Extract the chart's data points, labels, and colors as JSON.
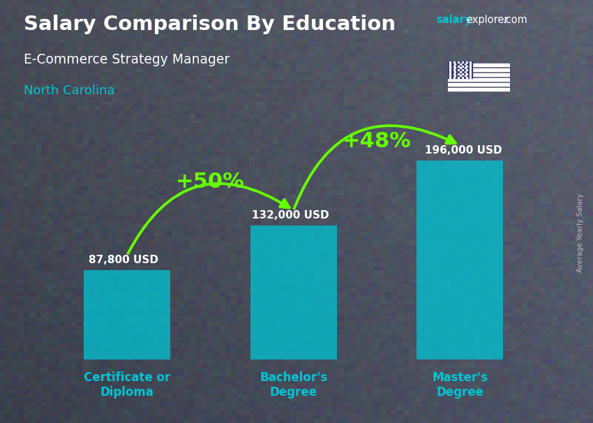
{
  "title": "Salary Comparison By Education",
  "subtitle": "E-Commerce Strategy Manager",
  "location": "North Carolina",
  "ylabel": "Average Yearly Salary",
  "categories": [
    "Certificate or\nDiploma",
    "Bachelor's\nDegree",
    "Master's\nDegree"
  ],
  "values": [
    87800,
    132000,
    196000
  ],
  "value_labels": [
    "87,800 USD",
    "132,000 USD",
    "196,000 USD"
  ],
  "pct_labels": [
    "+50%",
    "+48%"
  ],
  "bar_color": "#00c5d4",
  "bar_alpha": 0.75,
  "bar_width": 0.52,
  "arrow_color": "#66ff00",
  "title_color": "#ffffff",
  "subtitle_color": "#ffffff",
  "location_color": "#00c5d4",
  "value_color": "#ffffff",
  "pct_color": "#66ff00",
  "tick_color": "#00c5d4",
  "brand_color1": "#00c5d4",
  "brand_color2": "#ffffff",
  "bg_color_top": "#4a5a6a",
  "bg_color_bottom": "#2a3545",
  "figsize": [
    8.5,
    6.06
  ],
  "dpi": 100,
  "ylim": [
    0,
    250000
  ],
  "x_positions": [
    0,
    1,
    2
  ]
}
